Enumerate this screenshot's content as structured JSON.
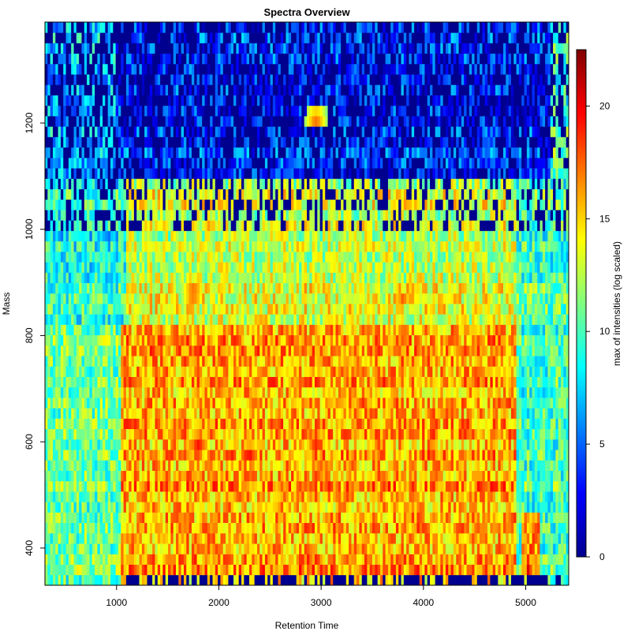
{
  "chart_data": {
    "type": "heatmap",
    "title": "Spectra Overview",
    "xlabel": "Retention Time",
    "ylabel": "Mass",
    "xlim": [
      300,
      5420
    ],
    "ylim": [
      330,
      1390
    ],
    "x_ticks": [
      1000,
      2000,
      3000,
      4000,
      5000
    ],
    "y_ticks": [
      400,
      600,
      800,
      1000,
      1200
    ],
    "colorbar": {
      "label": "max of intensities (log scaled)",
      "range": [
        0,
        22.5
      ],
      "ticks": [
        0,
        5,
        10,
        15,
        20
      ],
      "colors": [
        "#00008f",
        "#0000ff",
        "#0080ff",
        "#00ffff",
        "#80ff80",
        "#ffff00",
        "#ff8000",
        "#ff0000",
        "#800000"
      ]
    },
    "grid": {
      "n_rt_bins": 200,
      "n_mass_bins": 54,
      "mass_bin_width": 20,
      "notable_regions": [
        {
          "rt": [
            300,
            1050
          ],
          "mass": [
            330,
            830
          ],
          "value": 11
        },
        {
          "rt": [
            300,
            1100
          ],
          "mass": [
            830,
            1100
          ],
          "value": 9
        },
        {
          "rt": [
            300,
            1000
          ],
          "mass": [
            1100,
            1390
          ],
          "value": 7
        },
        {
          "rt": [
            1050,
            4900
          ],
          "mass": [
            330,
            830
          ],
          "value": 16
        },
        {
          "rt": [
            1050,
            4900
          ],
          "mass": [
            830,
            1100
          ],
          "value": 13
        },
        {
          "rt": [
            1000,
            5250
          ],
          "mass": [
            1100,
            1390
          ],
          "value": 4
        },
        {
          "rt": [
            4950,
            5150
          ],
          "mass": [
            330,
            470
          ],
          "value": 17
        },
        {
          "rt": [
            5150,
            5420
          ],
          "mass": [
            330,
            1390
          ],
          "value": 10
        }
      ],
      "hotspots": [
        {
          "rt": 1800,
          "mass": 600,
          "value": 21
        },
        {
          "rt": 2300,
          "mass": 580,
          "value": 21
        },
        {
          "rt": 2950,
          "mass": 600,
          "value": 20.5
        },
        {
          "rt": 3800,
          "mass": 870,
          "value": 18
        },
        {
          "rt": 2200,
          "mass": 500,
          "value": 19
        },
        {
          "rt": 3900,
          "mass": 620,
          "value": 19.5
        },
        {
          "rt": 2950,
          "mass": 1210,
          "value": 19
        },
        {
          "rt": 2350,
          "mass": 680,
          "value": 19.5
        },
        {
          "rt": 1750,
          "mass": 880,
          "value": 20
        }
      ]
    }
  }
}
